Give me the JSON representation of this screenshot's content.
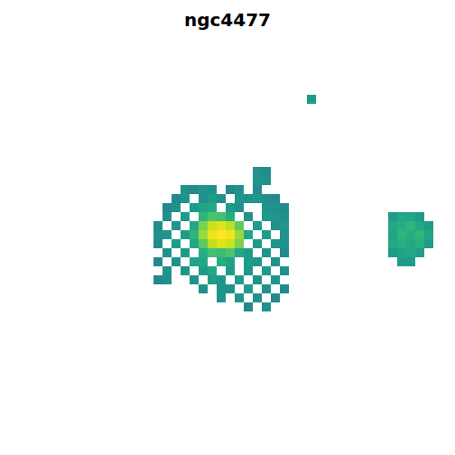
{
  "chart_data": {
    "type": "heatmap",
    "title": "ngc4477",
    "color": "viridis",
    "tick_labels": false,
    "xlim": [
      0,
      504
    ],
    "ylim": [
      44,
      504
    ],
    "color_range": [
      0,
      1
    ],
    "cells": [
      [
        345,
        110,
        0.55
      ],
      [
        285,
        190,
        0.5
      ],
      [
        295,
        190,
        0.48
      ],
      [
        285,
        200,
        0.52
      ],
      [
        295,
        200,
        0.5
      ],
      [
        205,
        210,
        0.5
      ],
      [
        215,
        210,
        0.48
      ],
      [
        225,
        210,
        0.52
      ],
      [
        235,
        210,
        0.5
      ],
      [
        255,
        210,
        0.47
      ],
      [
        265,
        210,
        0.5
      ],
      [
        285,
        210,
        0.48
      ],
      [
        195,
        220,
        0.47
      ],
      [
        205,
        220,
        0.52
      ],
      [
        225,
        220,
        0.5
      ],
      [
        235,
        220,
        0.55
      ],
      [
        245,
        220,
        0.5
      ],
      [
        265,
        220,
        0.52
      ],
      [
        275,
        220,
        0.5
      ],
      [
        285,
        220,
        0.53
      ],
      [
        295,
        220,
        0.5
      ],
      [
        305,
        220,
        0.47
      ],
      [
        185,
        230,
        0.47
      ],
      [
        195,
        230,
        0.5
      ],
      [
        215,
        230,
        0.55
      ],
      [
        225,
        230,
        0.58
      ],
      [
        235,
        230,
        0.6
      ],
      [
        255,
        230,
        0.55
      ],
      [
        265,
        230,
        0.5
      ],
      [
        295,
        230,
        0.52
      ],
      [
        305,
        230,
        0.5
      ],
      [
        315,
        230,
        0.48
      ],
      [
        185,
        240,
        0.5
      ],
      [
        205,
        240,
        0.55
      ],
      [
        225,
        240,
        0.65
      ],
      [
        235,
        240,
        0.72
      ],
      [
        245,
        240,
        0.7
      ],
      [
        255,
        240,
        0.62
      ],
      [
        275,
        240,
        0.5
      ],
      [
        295,
        240,
        0.55
      ],
      [
        305,
        240,
        0.52
      ],
      [
        315,
        240,
        0.5
      ],
      [
        435,
        240,
        0.55
      ],
      [
        445,
        240,
        0.6
      ],
      [
        455,
        240,
        0.58
      ],
      [
        465,
        240,
        0.55
      ],
      [
        175,
        250,
        0.48
      ],
      [
        195,
        250,
        0.52
      ],
      [
        215,
        250,
        0.6
      ],
      [
        225,
        250,
        0.8
      ],
      [
        235,
        250,
        0.92
      ],
      [
        245,
        250,
        0.95
      ],
      [
        255,
        250,
        0.9
      ],
      [
        265,
        250,
        0.75
      ],
      [
        285,
        250,
        0.55
      ],
      [
        305,
        250,
        0.5
      ],
      [
        315,
        250,
        0.52
      ],
      [
        435,
        250,
        0.6
      ],
      [
        445,
        250,
        0.62
      ],
      [
        455,
        250,
        0.65
      ],
      [
        465,
        250,
        0.6
      ],
      [
        475,
        250,
        0.55
      ],
      [
        175,
        260,
        0.5
      ],
      [
        185,
        260,
        0.52
      ],
      [
        205,
        260,
        0.55
      ],
      [
        215,
        260,
        0.65
      ],
      [
        225,
        260,
        0.85
      ],
      [
        235,
        260,
        0.97
      ],
      [
        245,
        260,
        1.0
      ],
      [
        255,
        260,
        0.98
      ],
      [
        265,
        260,
        0.85
      ],
      [
        275,
        260,
        0.6
      ],
      [
        295,
        260,
        0.55
      ],
      [
        315,
        260,
        0.5
      ],
      [
        435,
        260,
        0.58
      ],
      [
        445,
        260,
        0.65
      ],
      [
        455,
        260,
        0.62
      ],
      [
        465,
        260,
        0.66
      ],
      [
        475,
        260,
        0.58
      ],
      [
        175,
        270,
        0.48
      ],
      [
        195,
        270,
        0.55
      ],
      [
        215,
        270,
        0.6
      ],
      [
        225,
        270,
        0.75
      ],
      [
        235,
        270,
        0.9
      ],
      [
        245,
        270,
        0.95
      ],
      [
        255,
        270,
        0.92
      ],
      [
        265,
        270,
        0.8
      ],
      [
        285,
        270,
        0.55
      ],
      [
        305,
        270,
        0.52
      ],
      [
        315,
        270,
        0.5
      ],
      [
        435,
        270,
        0.6
      ],
      [
        445,
        270,
        0.62
      ],
      [
        455,
        270,
        0.6
      ],
      [
        465,
        270,
        0.63
      ],
      [
        475,
        270,
        0.55
      ],
      [
        185,
        280,
        0.5
      ],
      [
        205,
        280,
        0.55
      ],
      [
        225,
        280,
        0.62
      ],
      [
        235,
        280,
        0.7
      ],
      [
        245,
        280,
        0.68
      ],
      [
        255,
        280,
        0.72
      ],
      [
        265,
        280,
        0.6
      ],
      [
        275,
        280,
        0.55
      ],
      [
        295,
        280,
        0.52
      ],
      [
        315,
        280,
        0.48
      ],
      [
        435,
        280,
        0.55
      ],
      [
        445,
        280,
        0.58
      ],
      [
        455,
        280,
        0.6
      ],
      [
        465,
        280,
        0.57
      ],
      [
        175,
        290,
        0.47
      ],
      [
        195,
        290,
        0.5
      ],
      [
        215,
        290,
        0.58
      ],
      [
        225,
        290,
        0.6
      ],
      [
        245,
        290,
        0.62
      ],
      [
        255,
        290,
        0.58
      ],
      [
        275,
        290,
        0.55
      ],
      [
        285,
        290,
        0.52
      ],
      [
        305,
        290,
        0.5
      ],
      [
        445,
        290,
        0.55
      ],
      [
        455,
        290,
        0.55
      ],
      [
        185,
        300,
        0.5
      ],
      [
        205,
        300,
        0.52
      ],
      [
        225,
        300,
        0.55
      ],
      [
        235,
        300,
        0.6
      ],
      [
        255,
        300,
        0.55
      ],
      [
        275,
        300,
        0.52
      ],
      [
        295,
        300,
        0.55
      ],
      [
        315,
        300,
        0.5
      ],
      [
        175,
        310,
        0.47
      ],
      [
        185,
        310,
        0.5
      ],
      [
        215,
        310,
        0.5
      ],
      [
        235,
        310,
        0.55
      ],
      [
        245,
        310,
        0.52
      ],
      [
        265,
        310,
        0.55
      ],
      [
        285,
        310,
        0.5
      ],
      [
        305,
        310,
        0.52
      ],
      [
        225,
        320,
        0.5
      ],
      [
        245,
        320,
        0.52
      ],
      [
        255,
        320,
        0.5
      ],
      [
        275,
        320,
        0.55
      ],
      [
        295,
        320,
        0.5
      ],
      [
        315,
        320,
        0.48
      ],
      [
        245,
        330,
        0.5
      ],
      [
        265,
        330,
        0.52
      ],
      [
        285,
        330,
        0.5
      ],
      [
        305,
        330,
        0.48
      ],
      [
        275,
        340,
        0.47
      ],
      [
        295,
        340,
        0.5
      ]
    ]
  }
}
